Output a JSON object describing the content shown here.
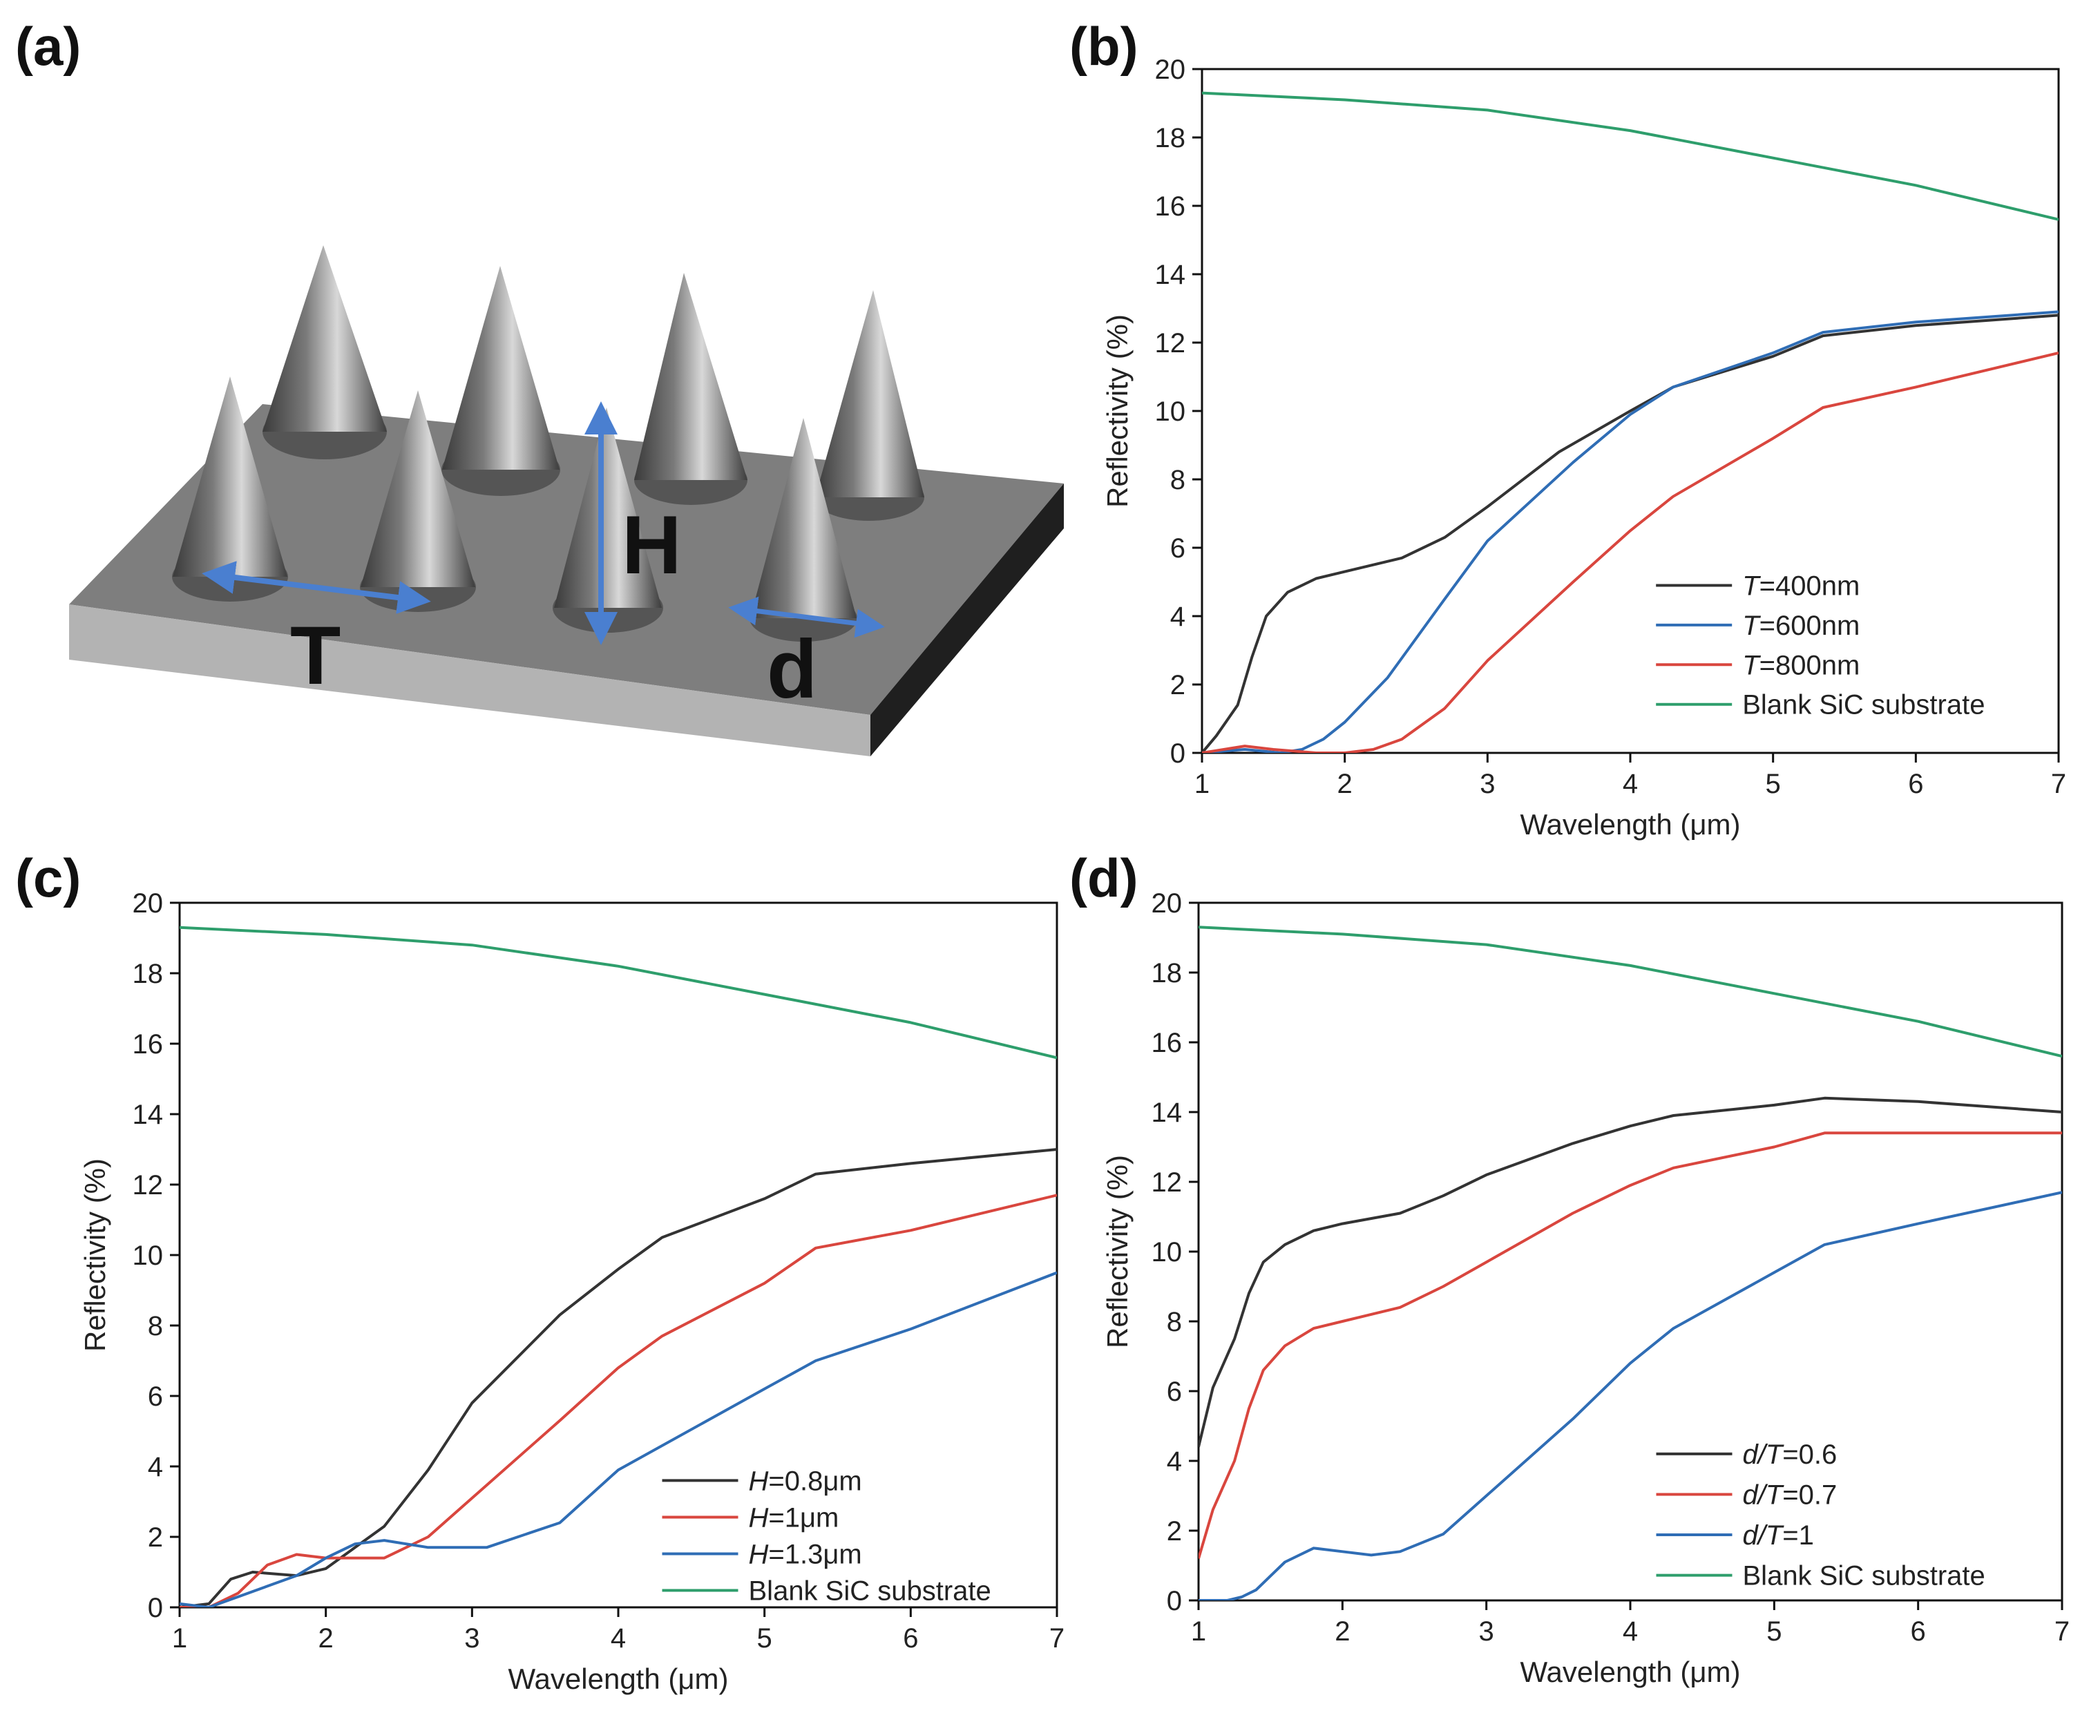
{
  "panels": {
    "a": {
      "letter": "(a)",
      "labels": {
        "T": "T",
        "H": "H",
        "d": "d"
      }
    },
    "b": {
      "letter": "(b)"
    },
    "c": {
      "letter": "(c)"
    },
    "d": {
      "letter": "(d)"
    }
  },
  "colors": {
    "black": "#333333",
    "blue": "#2f6db5",
    "red": "#d9463e",
    "green": "#2e9e6c"
  },
  "chart_data": [
    {
      "panel": "b",
      "type": "line",
      "xlabel": "Wavelength (μm)",
      "ylabel": "Reflectivity (%)",
      "xlim": [
        1,
        7
      ],
      "ylim": [
        0,
        20
      ],
      "xticks": [
        1,
        2,
        3,
        4,
        5,
        6,
        7
      ],
      "yticks": [
        0,
        2,
        4,
        6,
        8,
        10,
        12,
        14,
        16,
        18,
        20
      ],
      "legend_position": "bottom-right",
      "series": [
        {
          "name": "T=400nm",
          "var": "T",
          "rest": "=400nm",
          "color": "black",
          "x": [
            1,
            1.1,
            1.25,
            1.35,
            1.45,
            1.6,
            1.8,
            2.0,
            2.4,
            2.7,
            3.0,
            3.5,
            4.0,
            4.3,
            5.0,
            5.35,
            6.0,
            7.0
          ],
          "y": [
            0,
            0.5,
            1.4,
            2.8,
            4.0,
            4.7,
            5.1,
            5.3,
            5.7,
            6.3,
            7.2,
            8.8,
            10.0,
            10.7,
            11.6,
            12.2,
            12.5,
            12.8
          ]
        },
        {
          "name": "T=600nm",
          "var": "T",
          "rest": "=600nm",
          "color": "blue",
          "x": [
            1,
            1.3,
            1.55,
            1.7,
            1.85,
            2.0,
            2.3,
            2.7,
            3.0,
            3.6,
            4.0,
            4.3,
            5.0,
            5.35,
            6.0,
            7.0
          ],
          "y": [
            0,
            0.1,
            0.0,
            0.1,
            0.4,
            0.9,
            2.2,
            4.5,
            6.2,
            8.5,
            9.9,
            10.7,
            11.7,
            12.3,
            12.6,
            12.9
          ]
        },
        {
          "name": "T=800nm",
          "var": "T",
          "rest": "=800nm",
          "color": "red",
          "x": [
            1,
            1.3,
            1.5,
            1.8,
            2.0,
            2.2,
            2.4,
            2.7,
            3.0,
            3.6,
            4.0,
            4.3,
            5.0,
            5.35,
            6.0,
            7.0
          ],
          "y": [
            0,
            0.2,
            0.1,
            0.0,
            0.0,
            0.1,
            0.4,
            1.3,
            2.7,
            5.0,
            6.5,
            7.5,
            9.2,
            10.1,
            10.7,
            11.7
          ]
        },
        {
          "name": "Blank SiC substrate",
          "var": "",
          "rest": "Blank SiC substrate",
          "color": "green",
          "x": [
            1,
            2,
            3,
            4,
            5,
            6,
            7
          ],
          "y": [
            19.3,
            19.1,
            18.8,
            18.2,
            17.4,
            16.6,
            15.6
          ]
        }
      ]
    },
    {
      "panel": "c",
      "type": "line",
      "xlabel": "Wavelength (μm)",
      "ylabel": "Reflectivity (%)",
      "xlim": [
        1,
        7
      ],
      "ylim": [
        0,
        20
      ],
      "xticks": [
        1,
        2,
        3,
        4,
        5,
        6,
        7
      ],
      "yticks": [
        0,
        2,
        4,
        6,
        8,
        10,
        12,
        14,
        16,
        18,
        20
      ],
      "legend_position": "bottom-right",
      "series": [
        {
          "name": "H=0.8μm",
          "var": "H",
          "rest": "=0.8μm",
          "color": "black",
          "x": [
            1,
            1.2,
            1.35,
            1.5,
            1.8,
            2.0,
            2.2,
            2.4,
            2.7,
            3.0,
            3.6,
            4.0,
            4.3,
            5.0,
            5.35,
            6.0,
            7.0
          ],
          "y": [
            0,
            0.1,
            0.8,
            1.0,
            0.9,
            1.1,
            1.7,
            2.3,
            3.9,
            5.8,
            8.3,
            9.6,
            10.5,
            11.6,
            12.3,
            12.6,
            13.0
          ]
        },
        {
          "name": "H=1μm",
          "var": "H",
          "rest": "=1μm",
          "color": "red",
          "x": [
            1,
            1.2,
            1.4,
            1.6,
            1.8,
            2.0,
            2.2,
            2.4,
            2.7,
            3.0,
            3.6,
            4.0,
            4.3,
            5.0,
            5.35,
            6.0,
            7.0
          ],
          "y": [
            0,
            0.0,
            0.4,
            1.2,
            1.5,
            1.4,
            1.4,
            1.4,
            2.0,
            3.1,
            5.3,
            6.8,
            7.7,
            9.2,
            10.2,
            10.7,
            11.7
          ]
        },
        {
          "name": "H=1.3μm",
          "var": "H",
          "rest": "=1.3μm",
          "color": "blue",
          "x": [
            1,
            1.2,
            1.4,
            1.6,
            1.8,
            2.0,
            2.2,
            2.4,
            2.7,
            3.1,
            3.6,
            4.0,
            5.0,
            5.35,
            6.0,
            7.0
          ],
          "y": [
            0.1,
            0.0,
            0.3,
            0.6,
            0.9,
            1.4,
            1.8,
            1.9,
            1.7,
            1.7,
            2.4,
            3.9,
            6.2,
            7.0,
            7.9,
            9.5
          ]
        },
        {
          "name": "Blank SiC substrate",
          "var": "",
          "rest": "Blank SiC substrate",
          "color": "green",
          "x": [
            1,
            2,
            3,
            4,
            5,
            6,
            7
          ],
          "y": [
            19.3,
            19.1,
            18.8,
            18.2,
            17.4,
            16.6,
            15.6
          ]
        }
      ]
    },
    {
      "panel": "d",
      "type": "line",
      "xlabel": "Wavelength (μm)",
      "ylabel": "Reflectivity (%)",
      "xlim": [
        1,
        7
      ],
      "ylim": [
        0,
        20
      ],
      "xticks": [
        1,
        2,
        3,
        4,
        5,
        6,
        7
      ],
      "yticks": [
        0,
        2,
        4,
        6,
        8,
        10,
        12,
        14,
        16,
        18,
        20
      ],
      "legend_position": "bottom-right",
      "series": [
        {
          "name": "d/T=0.6",
          "var": "d/T",
          "rest": "=0.6",
          "color": "black",
          "x": [
            1,
            1.1,
            1.25,
            1.35,
            1.45,
            1.6,
            1.8,
            2.0,
            2.4,
            2.7,
            3.0,
            3.6,
            4.0,
            4.3,
            5.0,
            5.35,
            6.0,
            7.0
          ],
          "y": [
            4.4,
            6.1,
            7.5,
            8.8,
            9.7,
            10.2,
            10.6,
            10.8,
            11.1,
            11.6,
            12.2,
            13.1,
            13.6,
            13.9,
            14.2,
            14.4,
            14.3,
            14.0
          ]
        },
        {
          "name": "d/T=0.7",
          "var": "d/T",
          "rest": "=0.7",
          "color": "red",
          "x": [
            1,
            1.1,
            1.25,
            1.35,
            1.45,
            1.6,
            1.8,
            2.0,
            2.4,
            2.7,
            3.0,
            3.6,
            4.0,
            4.3,
            5.0,
            5.35,
            6.0,
            7.0
          ],
          "y": [
            1.2,
            2.6,
            4.0,
            5.5,
            6.6,
            7.3,
            7.8,
            8.0,
            8.4,
            9.0,
            9.7,
            11.1,
            11.9,
            12.4,
            13.0,
            13.4,
            13.4,
            13.4
          ]
        },
        {
          "name": "d/T=1",
          "var": "d/T",
          "rest": "=1",
          "color": "blue",
          "x": [
            1,
            1.2,
            1.3,
            1.4,
            1.5,
            1.6,
            1.8,
            2.0,
            2.2,
            2.4,
            2.7,
            3.0,
            3.6,
            4.0,
            4.3,
            5.0,
            5.35,
            6.0,
            7.0
          ],
          "y": [
            0,
            0.0,
            0.1,
            0.3,
            0.7,
            1.1,
            1.5,
            1.4,
            1.3,
            1.4,
            1.9,
            3.0,
            5.2,
            6.8,
            7.8,
            9.4,
            10.2,
            10.8,
            11.7
          ]
        },
        {
          "name": "Blank SiC substrate",
          "var": "",
          "rest": "Blank SiC substrate",
          "color": "green",
          "x": [
            1,
            2,
            3,
            4,
            5,
            6,
            7
          ],
          "y": [
            19.3,
            19.1,
            18.8,
            18.2,
            17.4,
            16.6,
            15.6
          ]
        }
      ]
    }
  ]
}
